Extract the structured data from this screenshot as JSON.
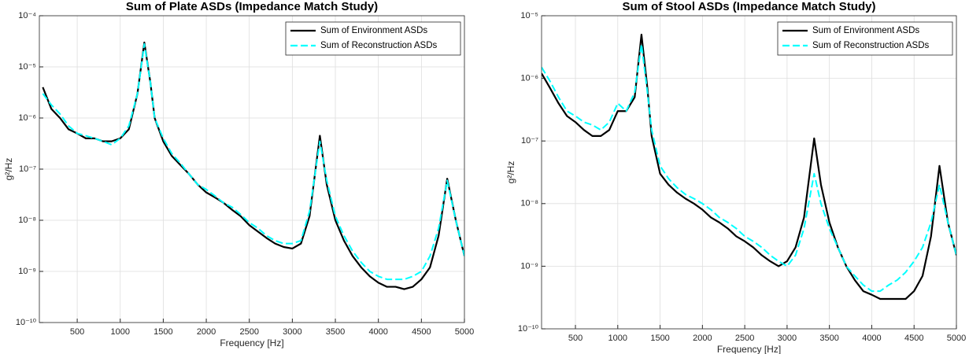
{
  "chart_data": [
    {
      "type": "line",
      "title": "Sum of Plate ASDs (Impedance Match Study)",
      "x_label": "Frequency [Hz]",
      "y_label": "g²/Hz",
      "yscale": "log",
      "grid": true,
      "legend": "upper right",
      "xlim": [
        60,
        5000
      ],
      "xticks": [
        500,
        1000,
        1500,
        2000,
        2500,
        3000,
        3500,
        4000,
        4500,
        5000
      ],
      "ylim": [
        1e-10,
        0.0001
      ],
      "yticks": [
        {
          "value": 1e-10,
          "label": "10⁻¹⁰"
        },
        {
          "value": 1e-09,
          "label": "10⁻⁹"
        },
        {
          "value": 1e-08,
          "label": "10⁻⁸"
        },
        {
          "value": 1e-07,
          "label": "10⁻⁷"
        },
        {
          "value": 1e-06,
          "label": "10⁻⁶"
        },
        {
          "value": 1e-05,
          "label": "10⁻⁵"
        },
        {
          "value": 0.0001,
          "label": "10⁻⁴"
        }
      ],
      "x": [
        100,
        200,
        300,
        400,
        500,
        600,
        700,
        800,
        900,
        1000,
        1100,
        1200,
        1280,
        1350,
        1400,
        1500,
        1600,
        1700,
        1800,
        1900,
        2000,
        2100,
        2200,
        2300,
        2400,
        2500,
        2600,
        2700,
        2800,
        2900,
        3000,
        3100,
        3200,
        3320,
        3400,
        3500,
        3600,
        3700,
        3800,
        3900,
        4000,
        4100,
        4200,
        4300,
        4400,
        4500,
        4600,
        4700,
        4800,
        4900,
        5000
      ],
      "series": [
        {
          "name": "Sum of Environment ASDs",
          "color": "#000000",
          "line_style": "solid",
          "values": [
            4e-06,
            1.5e-06,
            1e-06,
            6e-07,
            5e-07,
            4e-07,
            4e-07,
            3.5e-07,
            3.5e-07,
            4e-07,
            6e-07,
            3e-06,
            3e-05,
            5e-06,
            1e-06,
            3.5e-07,
            1.8e-07,
            1.2e-07,
            8e-08,
            5e-08,
            3.5e-08,
            2.8e-08,
            2.2e-08,
            1.6e-08,
            1.2e-08,
            8e-09,
            6e-09,
            4.5e-09,
            3.5e-09,
            3e-09,
            2.8e-09,
            3.5e-09,
            1.2e-08,
            4.5e-07,
            5e-08,
            1e-08,
            4e-09,
            2e-09,
            1.2e-09,
            8e-10,
            6e-10,
            5e-10,
            5e-10,
            4.5e-10,
            5e-10,
            7e-10,
            1.2e-09,
            5e-09,
            6.5e-08,
            1e-08,
            2e-09
          ]
        },
        {
          "name": "Sum of Reconstruction ASDs",
          "color": "#00ffff",
          "line_style": "dashed",
          "values": [
            3e-06,
            1.8e-06,
            1.2e-06,
            7e-07,
            5e-07,
            4.5e-07,
            4e-07,
            3.5e-07,
            3e-07,
            4e-07,
            7e-07,
            3e-06,
            2.8e-05,
            5e-06,
            1e-06,
            4e-07,
            2e-07,
            1.3e-07,
            8e-08,
            5e-08,
            4e-08,
            3e-08,
            2.2e-08,
            1.8e-08,
            1.3e-08,
            9e-09,
            7e-09,
            5e-09,
            4e-09,
            3.5e-09,
            3.5e-09,
            4e-09,
            1.5e-08,
            3.5e-07,
            6e-08,
            1.2e-08,
            5e-09,
            2.5e-09,
            1.5e-09,
            1e-09,
            8e-10,
            7e-10,
            7e-10,
            7e-10,
            8e-10,
            1e-09,
            2e-09,
            7e-09,
            6e-08,
            1e-08,
            2e-09
          ]
        }
      ]
    },
    {
      "type": "line",
      "title": "Sum of Stool ASDs (Impedance Match Study)",
      "x_label": "Frequency [Hz]",
      "y_label": "g²/Hz",
      "yscale": "log",
      "grid": true,
      "legend": "upper right",
      "xlim": [
        100,
        5000
      ],
      "xticks": [
        500,
        1000,
        1500,
        2000,
        2500,
        3000,
        3500,
        4000,
        4500,
        5000
      ],
      "ylim": [
        1e-10,
        1e-05
      ],
      "yticks": [
        {
          "value": 1e-10,
          "label": "10⁻¹⁰"
        },
        {
          "value": 1e-09,
          "label": "10⁻⁹"
        },
        {
          "value": 1e-08,
          "label": "10⁻⁸"
        },
        {
          "value": 1e-07,
          "label": "10⁻⁷"
        },
        {
          "value": 1e-06,
          "label": "10⁻⁶"
        },
        {
          "value": 1e-05,
          "label": "10⁻⁵"
        }
      ],
      "x": [
        100,
        200,
        300,
        400,
        500,
        600,
        700,
        800,
        900,
        1000,
        1100,
        1200,
        1280,
        1350,
        1400,
        1500,
        1600,
        1700,
        1800,
        1900,
        2000,
        2100,
        2200,
        2300,
        2400,
        2500,
        2600,
        2700,
        2800,
        2900,
        3000,
        3100,
        3200,
        3320,
        3400,
        3500,
        3600,
        3700,
        3800,
        3900,
        4000,
        4100,
        4200,
        4300,
        4400,
        4500,
        4600,
        4700,
        4800,
        4900,
        5000
      ],
      "series": [
        {
          "name": "Sum of Environment ASDs",
          "color": "#000000",
          "line_style": "solid",
          "values": [
            1.2e-06,
            7e-07,
            4e-07,
            2.5e-07,
            2e-07,
            1.5e-07,
            1.2e-07,
            1.2e-07,
            1.5e-07,
            3e-07,
            3e-07,
            5e-07,
            5e-06,
            7e-07,
            1.2e-07,
            3e-08,
            2e-08,
            1.5e-08,
            1.2e-08,
            1e-08,
            8e-09,
            6e-09,
            5e-09,
            4e-09,
            3e-09,
            2.5e-09,
            2e-09,
            1.5e-09,
            1.2e-09,
            1e-09,
            1.2e-09,
            2e-09,
            6e-09,
            1.1e-07,
            2e-08,
            5e-09,
            2e-09,
            1e-09,
            6e-10,
            4e-10,
            3.5e-10,
            3e-10,
            3e-10,
            3e-10,
            3e-10,
            4e-10,
            7e-10,
            3e-09,
            4e-08,
            5e-09,
            1.5e-09
          ]
        },
        {
          "name": "Sum of Reconstruction ASDs",
          "color": "#00ffff",
          "line_style": "dashed",
          "values": [
            1.5e-06,
            9e-07,
            5e-07,
            3e-07,
            2.5e-07,
            2e-07,
            1.8e-07,
            1.5e-07,
            2e-07,
            4e-07,
            3e-07,
            6e-07,
            3.5e-06,
            6e-07,
            1.5e-07,
            4e-08,
            2.5e-08,
            1.8e-08,
            1.4e-08,
            1.2e-08,
            1e-08,
            8e-09,
            6e-09,
            5e-09,
            4e-09,
            3e-09,
            2.5e-09,
            2e-09,
            1.5e-09,
            1.2e-09,
            1e-09,
            1.5e-09,
            4e-09,
            3e-08,
            1e-08,
            4e-09,
            2e-09,
            1e-09,
            7e-10,
            5e-10,
            4e-10,
            4e-10,
            5e-10,
            6e-10,
            8e-10,
            1.2e-09,
            2e-09,
            5e-09,
            2e-08,
            5e-09,
            1.5e-09
          ]
        }
      ]
    }
  ]
}
